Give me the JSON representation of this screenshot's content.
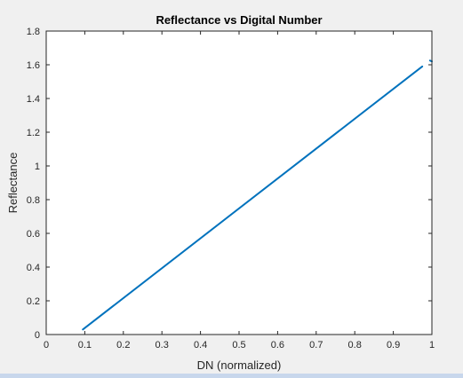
{
  "chart_data": {
    "type": "line",
    "title": "Reflectance vs Digital Number",
    "xlabel": "DN (normalized)",
    "ylabel": "Reflectance",
    "xlim": [
      0,
      1
    ],
    "ylim": [
      0,
      1.8
    ],
    "xticks": [
      0,
      0.1,
      0.2,
      0.3,
      0.4,
      0.5,
      0.6,
      0.7,
      0.8,
      0.9,
      1
    ],
    "xtick_labels": [
      "0",
      "0.1",
      "0.2",
      "0.3",
      "0.4",
      "0.5",
      "0.6",
      "0.7",
      "0.8",
      "0.9",
      "1"
    ],
    "yticks": [
      0,
      0.2,
      0.4,
      0.6,
      0.8,
      1,
      1.2,
      1.4,
      1.6,
      1.8
    ],
    "ytick_labels": [
      "0",
      "0.2",
      "0.4",
      "0.6",
      "0.8",
      "1",
      "1.2",
      "1.4",
      "1.6",
      "1.8"
    ],
    "grid": false,
    "box": true,
    "series": [
      {
        "color": "#0072bd",
        "x": [
          0.095,
          0.975
        ],
        "y": [
          0.03,
          1.59
        ]
      },
      {
        "color": "#0072bd",
        "x": [
          0.995,
          1.0
        ],
        "y": [
          1.625,
          1.62
        ]
      }
    ]
  }
}
